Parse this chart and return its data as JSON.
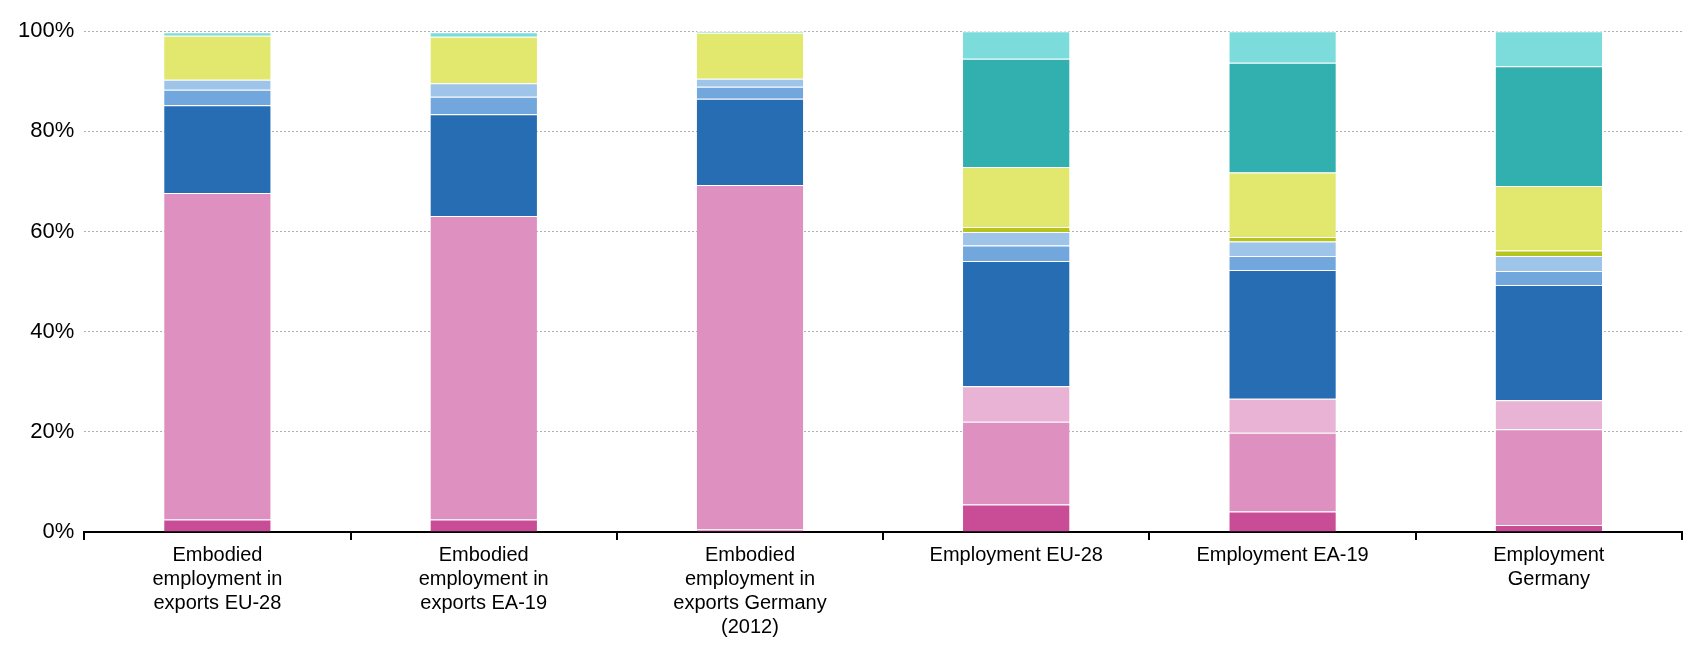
{
  "chart_data": {
    "type": "bar",
    "stacked": true,
    "categories": [
      "Embodied employment in exports EU-28",
      "Embodied employment in exports EA-19",
      "Embodied employment in exports Germany (2012)",
      "Employment EU-28",
      "Employment EA-19",
      "Employment Germany"
    ],
    "series": [
      {
        "color": "#c84d96",
        "values": [
          2.5,
          2.5,
          0.5,
          5.5,
          4.1,
          1.4
        ]
      },
      {
        "color": "#de91c0",
        "values": [
          65.2,
          60.6,
          68.8,
          16.5,
          15.7,
          19.1
        ]
      },
      {
        "color": "#e8b3d4",
        "values": [
          null,
          null,
          0,
          7.1,
          6.8,
          5.8
        ]
      },
      {
        "color": "#276db3",
        "values": [
          17.5,
          20.3,
          17.2,
          25.0,
          25.7,
          23.0
        ]
      },
      {
        "color": "#72a7de",
        "values": [
          3.1,
          3.5,
          2.4,
          3.1,
          2.8,
          2.8
        ]
      },
      {
        "color": "#9ec4e9",
        "values": [
          2.0,
          2.7,
          1.6,
          2.7,
          2.9,
          3.0
        ]
      },
      {
        "color": "#b8c41e",
        "values": [
          0,
          0,
          0,
          1.0,
          0.9,
          1.1
        ]
      },
      {
        "color": "#e2e76d",
        "values": [
          8.8,
          9.3,
          9.2,
          12.0,
          12.9,
          12.9
        ]
      },
      {
        "color": "#32afaf",
        "values": [
          0,
          0,
          0,
          21.6,
          21.9,
          23.9
        ]
      },
      {
        "color": "#7cdbdb",
        "values": [
          0.7,
          0.9,
          0.3,
          5.5,
          6.3,
          7.0
        ]
      }
    ],
    "ylim": [
      0,
      100
    ],
    "yticks": [
      {
        "value": 0,
        "label": "0%"
      },
      {
        "value": 20,
        "label": "20%"
      },
      {
        "value": 40,
        "label": "40%"
      },
      {
        "value": 60,
        "label": "60%"
      },
      {
        "value": 80,
        "label": "80%"
      },
      {
        "value": 100,
        "label": "100%"
      }
    ],
    "grid": "y",
    "legend": false
  }
}
